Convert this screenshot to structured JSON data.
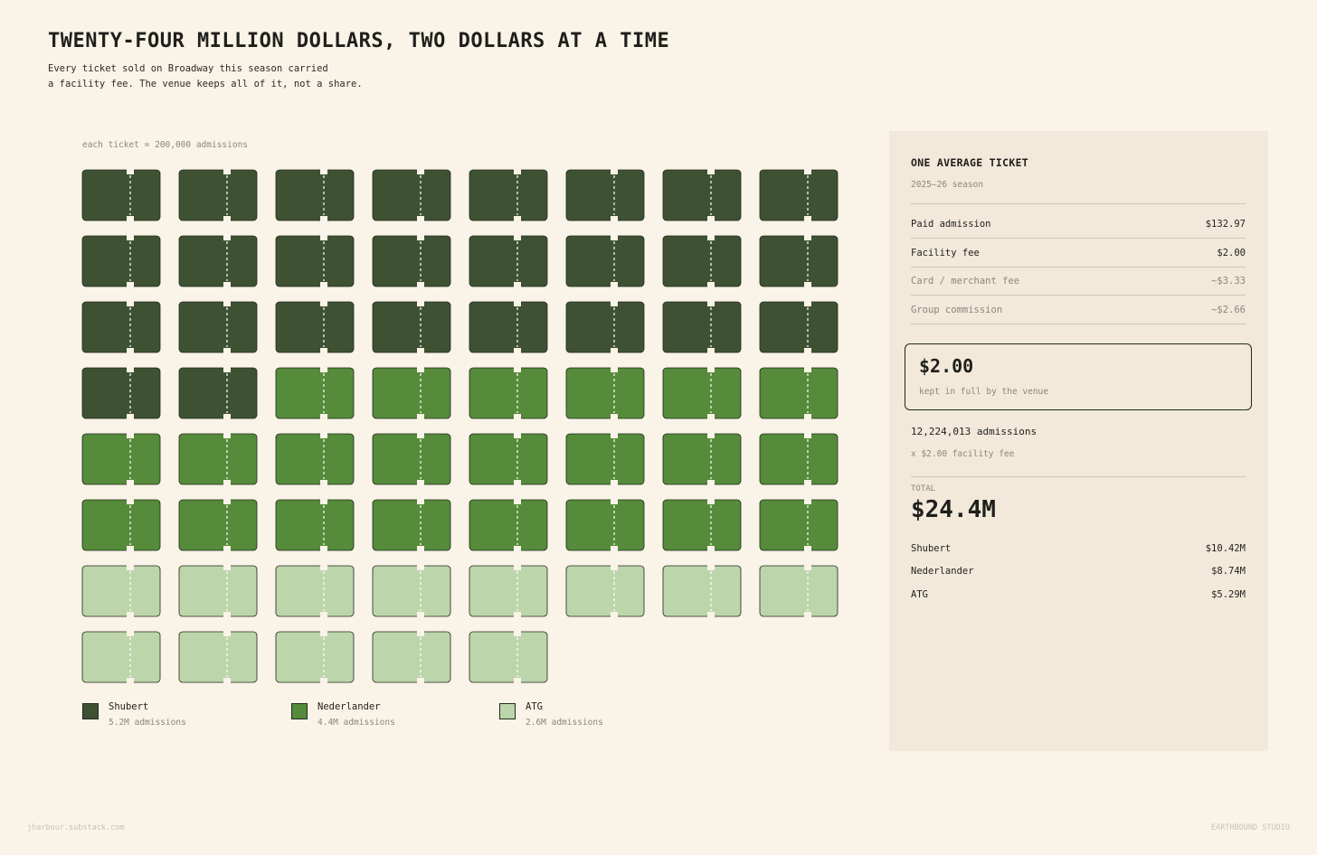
{
  "header": {
    "title": "TWENTY-FOUR MILLION DOLLARS, TWO DOLLARS AT A TIME",
    "subtitle_line1": "Every ticket sold on Broadway this season carried",
    "subtitle_line2": "a facility fee. The venue keeps all of it, not a share."
  },
  "chart_data": {
    "type": "waffle",
    "note": "each ticket = 200,000 admissions",
    "columns": 8,
    "units_per_icon": 200000,
    "series": [
      {
        "name": "Shubert",
        "icons": 26,
        "color": "#3e5233",
        "detail": "5.2M admissions"
      },
      {
        "name": "Nederlander",
        "icons": 22,
        "color": "#558b3a",
        "detail": "4.4M admissions"
      },
      {
        "name": "ATG",
        "icons": 13,
        "color": "#bdd5ab",
        "detail": "2.6M admissions"
      }
    ]
  },
  "panel": {
    "title": "ONE AVERAGE TICKET",
    "season": "2025–26 season",
    "rows": [
      {
        "label": "Paid admission",
        "value": "$132.97",
        "muted": false
      },
      {
        "label": "Facility fee",
        "value": "$2.00",
        "muted": false
      },
      {
        "label": "Card / merchant fee",
        "value": "~$3.33",
        "muted": true
      },
      {
        "label": "Group commission",
        "value": "~$2.66",
        "muted": true
      }
    ],
    "kept_amount": "$2.00",
    "kept_note": "kept in full by the venue",
    "admissions": "12,224,013 admissions",
    "times_fee": "x $2.00 facility fee",
    "total_label": "TOTAL",
    "total_value": "$24.4M",
    "owners": [
      {
        "label": "Shubert",
        "value": "$10.42M"
      },
      {
        "label": "Nederlander",
        "value": "$8.74M"
      },
      {
        "label": "ATG",
        "value": "$5.29M"
      }
    ]
  },
  "footer": {
    "left": "jharbour.substack.com",
    "right": "EARTHBOUND STUDIO"
  }
}
